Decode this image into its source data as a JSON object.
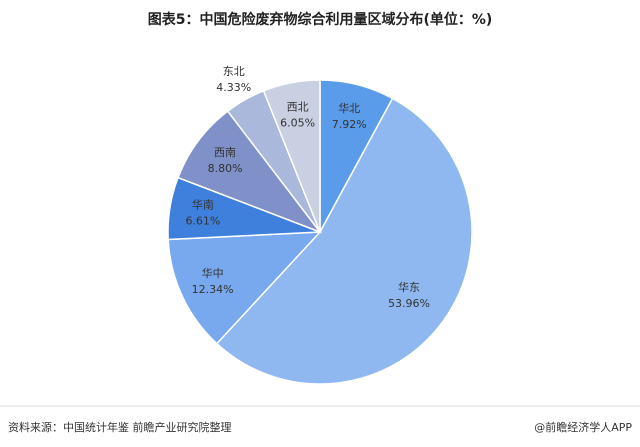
{
  "chart_data": {
    "type": "pie",
    "title": "图表5：中国危险废弃物综合利用量区域分布(单位：%)",
    "categories": [
      "华北",
      "华东",
      "华中",
      "华南",
      "西南",
      "东北",
      "西北"
    ],
    "values": [
      7.92,
      53.96,
      12.34,
      6.61,
      8.8,
      4.33,
      6.05
    ],
    "value_labels": [
      "7.92%",
      "53.96%",
      "12.34%",
      "6.61%",
      "8.80%",
      "4.33%",
      "6.05%"
    ],
    "colors": [
      "#5a9bea",
      "#8fb8f0",
      "#78a8ee",
      "#3f80dc",
      "#8090c8",
      "#aab8dc",
      "#c9d0e2"
    ],
    "source": "资料来源：中国统计年鉴 前瞻产业研究院整理",
    "credit": "@前瞻经济学人APP"
  }
}
